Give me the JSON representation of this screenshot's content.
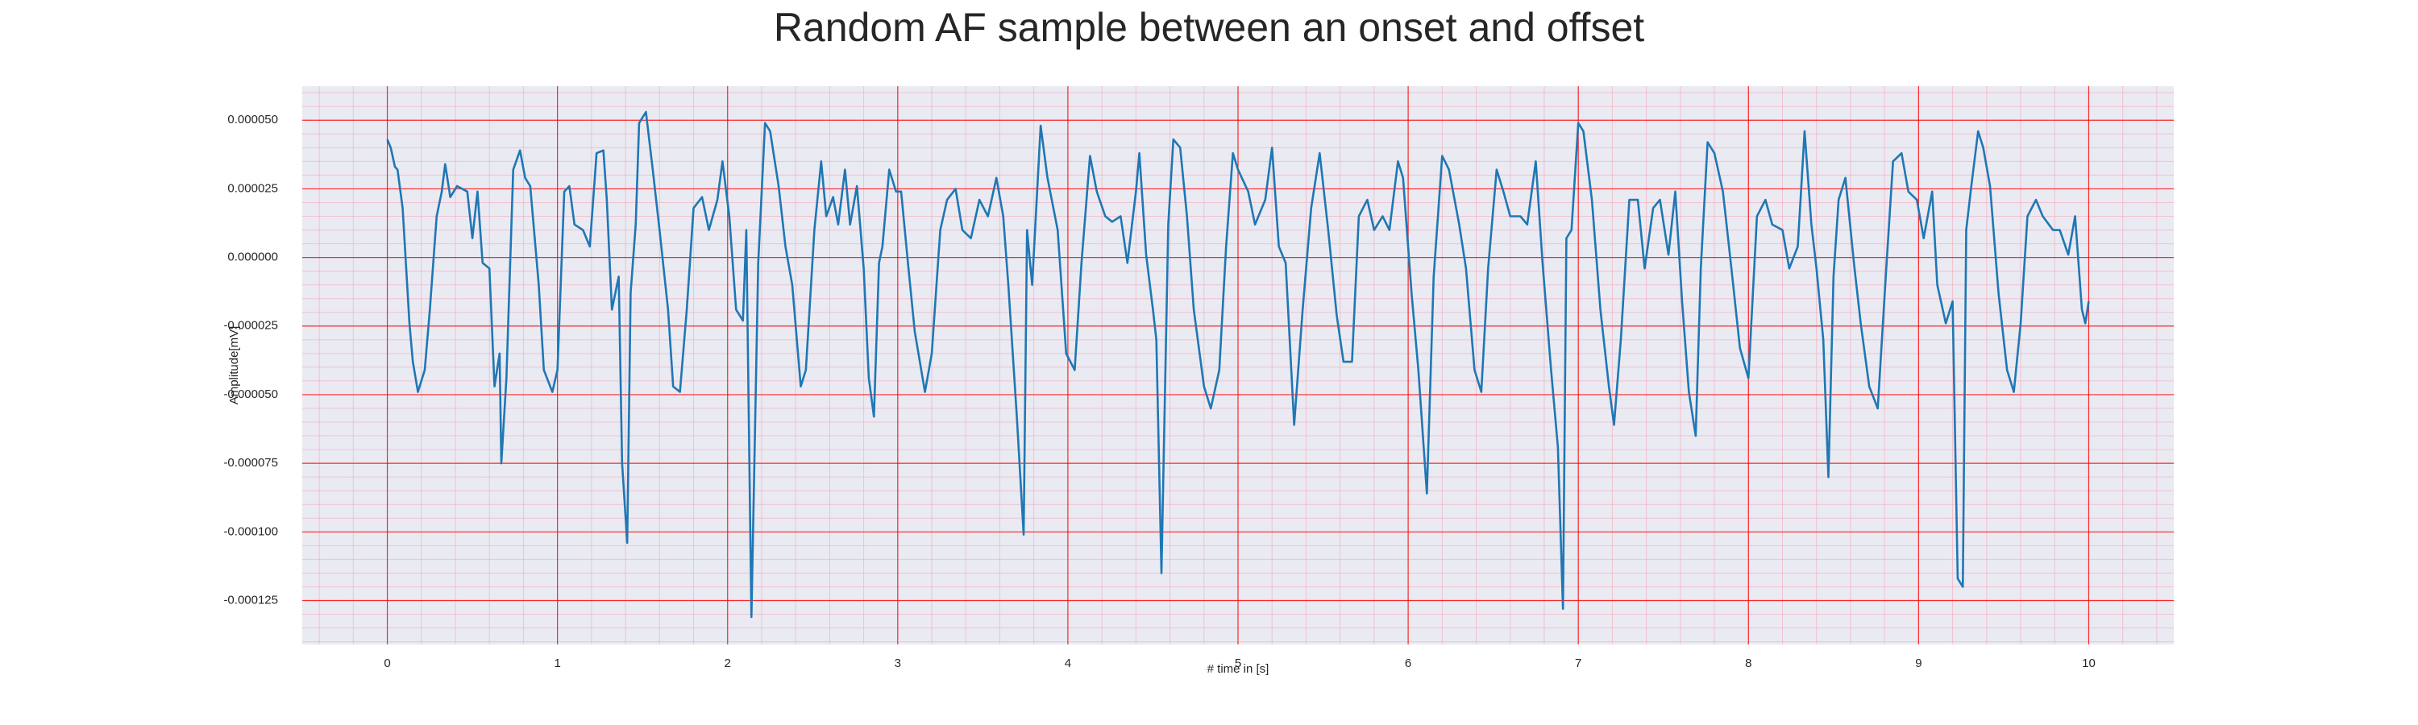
{
  "chart_data": {
    "type": "line",
    "title": "Random AF sample between an onset and offset",
    "xlabel": "# time in [s]",
    "ylabel": "Amplitude[mV]",
    "color": "#1f77b4",
    "grid": true,
    "grid_color": "#ff0000",
    "minor_grid": {
      "x": 0.2,
      "y": 5e-06,
      "color": "#f4a6b8"
    },
    "background": "#eaeaf2",
    "xlim": [
      -0.5,
      10.5
    ],
    "xticks": [
      0,
      1,
      2,
      3,
      4,
      5,
      6,
      7,
      8,
      9,
      10
    ],
    "ylim": [
      -0.000141,
      6.24e-05
    ],
    "yticks": [
      {
        "value": -0.000125,
        "label": "-0.000125"
      },
      {
        "value": -0.0001,
        "label": "-0.000100"
      },
      {
        "value": -7.5e-05,
        "label": "-0.000075"
      },
      {
        "value": -5e-05,
        "label": "-0.000050"
      },
      {
        "value": -2.5e-05,
        "label": "-0.000025"
      },
      {
        "value": 0,
        "label": "0.000000"
      },
      {
        "value": 2.5e-05,
        "label": "0.000025"
      },
      {
        "value": 5e-05,
        "label": "0.000050"
      }
    ],
    "x": [
      0,
      0.02,
      0.045,
      0.06,
      0.09,
      0.13,
      0.15,
      0.18,
      0.22,
      0.25,
      0.29,
      0.32,
      0.34,
      0.37,
      0.41,
      0.44,
      0.47,
      0.5,
      0.53,
      0.56,
      0.6,
      0.63,
      0.66,
      0.67,
      0.7,
      0.74,
      0.78,
      0.81,
      0.84,
      0.89,
      0.92,
      0.97,
      1.0,
      1.04,
      1.07,
      1.1,
      1.15,
      1.19,
      1.23,
      1.27,
      1.29,
      1.32,
      1.36,
      1.38,
      1.41,
      1.43,
      1.46,
      1.48,
      1.52,
      1.56,
      1.6,
      1.65,
      1.68,
      1.72,
      1.76,
      1.8,
      1.85,
      1.89,
      1.94,
      1.97,
      2.01,
      2.05,
      2.09,
      2.11,
      2.14,
      2.18,
      2.22,
      2.25,
      2.3,
      2.34,
      2.38,
      2.43,
      2.46,
      2.51,
      2.55,
      2.58,
      2.62,
      2.65,
      2.69,
      2.72,
      2.76,
      2.8,
      2.83,
      2.86,
      2.89,
      2.91,
      2.95,
      2.99,
      3.02,
      3.06,
      3.1,
      3.16,
      3.2,
      3.25,
      3.29,
      3.34,
      3.38,
      3.43,
      3.48,
      3.53,
      3.58,
      3.62,
      3.65,
      3.7,
      3.74,
      3.76,
      3.79,
      3.84,
      3.88,
      3.94,
      3.99,
      4.04,
      4.08,
      4.13,
      4.17,
      4.22,
      4.26,
      4.31,
      4.35,
      4.4,
      4.42,
      4.46,
      4.5,
      4.52,
      4.55,
      4.59,
      4.62,
      4.66,
      4.7,
      4.74,
      4.8,
      4.84,
      4.89,
      4.93,
      4.97,
      5.0,
      5.06,
      5.1,
      5.16,
      5.2,
      5.24,
      5.28,
      5.33,
      5.38,
      5.43,
      5.48,
      5.53,
      5.58,
      5.62,
      5.67,
      5.71,
      5.76,
      5.8,
      5.85,
      5.89,
      5.94,
      5.97,
      6.02,
      6.06,
      6.11,
      6.15,
      6.2,
      6.24,
      6.3,
      6.34,
      6.39,
      6.43,
      6.47,
      6.52,
      6.56,
      6.6,
      6.66,
      6.7,
      6.75,
      6.79,
      6.84,
      6.88,
      6.91,
      6.93,
      6.96,
      7.0,
      7.03,
      7.08,
      7.13,
      7.18,
      7.21,
      7.25,
      7.3,
      7.35,
      7.39,
      7.44,
      7.48,
      7.53,
      7.57,
      7.61,
      7.65,
      7.69,
      7.72,
      7.76,
      7.8,
      7.85,
      7.9,
      7.95,
      8.0,
      8.05,
      8.1,
      8.14,
      8.2,
      8.24,
      8.29,
      8.33,
      8.37,
      8.4,
      8.44,
      8.47,
      8.5,
      8.53,
      8.57,
      8.62,
      8.66,
      8.71,
      8.76,
      8.81,
      8.85,
      8.9,
      8.94,
      8.99,
      9.03,
      9.08,
      9.11,
      9.16,
      9.2,
      9.23,
      9.26,
      9.28,
      9.31,
      9.35,
      9.38,
      9.42,
      9.47,
      9.52,
      9.56,
      9.6,
      9.64,
      9.69,
      9.73,
      9.79,
      9.83,
      9.88,
      9.92,
      9.96,
      9.98,
      10.0
    ],
    "values": [
      4.3e-05,
      4e-05,
      3.3e-05,
      3.2e-05,
      1.8e-05,
      -2.4e-05,
      -3.8e-05,
      -4.9e-05,
      -4.1e-05,
      -1.9e-05,
      1.5e-05,
      2.4e-05,
      3.4e-05,
      2.2e-05,
      2.6e-05,
      2.5e-05,
      2.4e-05,
      7e-06,
      2.4e-05,
      -2e-06,
      -4e-06,
      -4.7e-05,
      -3.5e-05,
      -7.5e-05,
      -4.4e-05,
      3.2e-05,
      3.9e-05,
      2.9e-05,
      2.6e-05,
      -1e-05,
      -4.1e-05,
      -4.9e-05,
      -4.1e-05,
      2.4e-05,
      2.6e-05,
      1.2e-05,
      1e-05,
      4e-06,
      3.8e-05,
      3.9e-05,
      2.1e-05,
      -1.9e-05,
      -7e-06,
      -7.5e-05,
      -0.000104,
      -1.3e-05,
      1.2e-05,
      4.9e-05,
      5.3e-05,
      3.2e-05,
      1e-05,
      -1.9e-05,
      -4.7e-05,
      -4.9e-05,
      -1.9e-05,
      1.8e-05,
      2.2e-05,
      1e-05,
      2.1e-05,
      3.5e-05,
      1.5e-05,
      -1.9e-05,
      -2.3e-05,
      1e-05,
      -0.000131,
      -2e-06,
      4.9e-05,
      4.6e-05,
      2.6e-05,
      4e-06,
      -1e-05,
      -4.7e-05,
      -4.1e-05,
      1e-05,
      3.5e-05,
      1.5e-05,
      2.2e-05,
      1.2e-05,
      3.2e-05,
      1.2e-05,
      2.6e-05,
      -4e-06,
      -4.4e-05,
      -5.8e-05,
      -2e-06,
      4e-06,
      3.2e-05,
      2.4e-05,
      2.4e-05,
      -2e-06,
      -2.7e-05,
      -4.9e-05,
      -3.5e-05,
      1e-05,
      2.1e-05,
      2.5e-05,
      1e-05,
      7e-06,
      2.1e-05,
      1.5e-05,
      2.9e-05,
      1.5e-05,
      -1e-05,
      -5.8e-05,
      -0.000101,
      1e-05,
      -1e-05,
      4.8e-05,
      2.9e-05,
      1e-05,
      -3.5e-05,
      -4.1e-05,
      -2e-06,
      3.7e-05,
      2.4e-05,
      1.5e-05,
      1.3e-05,
      1.5e-05,
      -2e-06,
      2.4e-05,
      3.8e-05,
      1e-06,
      -1.9e-05,
      -3e-05,
      -0.000115,
      1.2e-05,
      4.3e-05,
      4e-05,
      1.5e-05,
      -1.9e-05,
      -4.7e-05,
      -5.5e-05,
      -4.1e-05,
      4e-06,
      3.8e-05,
      3.2e-05,
      2.4e-05,
      1.2e-05,
      2.1e-05,
      4e-05,
      4e-06,
      -2e-06,
      -6.1e-05,
      -1.9e-05,
      1.8e-05,
      3.8e-05,
      1e-05,
      -2.1e-05,
      -3.8e-05,
      -3.8e-05,
      1.5e-05,
      2.1e-05,
      1e-05,
      1.5e-05,
      1e-05,
      3.5e-05,
      2.9e-05,
      -1.3e-05,
      -4.1e-05,
      -8.6e-05,
      -7e-06,
      3.7e-05,
      3.2e-05,
      1.2e-05,
      -4e-06,
      -4.1e-05,
      -4.9e-05,
      -4e-06,
      3.2e-05,
      2.4e-05,
      1.5e-05,
      1.5e-05,
      1.2e-05,
      3.5e-05,
      -2e-06,
      -4.1e-05,
      -6.9e-05,
      -0.000128,
      7e-06,
      1e-05,
      4.9e-05,
      4.6e-05,
      2.1e-05,
      -1.9e-05,
      -4.7e-05,
      -6.1e-05,
      -3e-05,
      2.1e-05,
      2.1e-05,
      -4e-06,
      1.8e-05,
      2.1e-05,
      1e-06,
      2.4e-05,
      -1.6e-05,
      -4.9e-05,
      -6.5e-05,
      -4e-06,
      4.2e-05,
      3.8e-05,
      2.4e-05,
      -4e-06,
      -3.3e-05,
      -4.4e-05,
      1.5e-05,
      2.1e-05,
      1.2e-05,
      1e-05,
      -4e-06,
      4e-06,
      4.6e-05,
      1.2e-05,
      -4e-06,
      -3e-05,
      -8e-05,
      -7e-06,
      2.1e-05,
      2.9e-05,
      -2e-06,
      -2.4e-05,
      -4.7e-05,
      -5.5e-05,
      -4e-06,
      3.5e-05,
      3.8e-05,
      2.4e-05,
      2.1e-05,
      7e-06,
      2.4e-05,
      -1e-05,
      -2.4e-05,
      -1.6e-05,
      -0.000117,
      -0.00012,
      1e-05,
      2.6e-05,
      4.6e-05,
      4e-05,
      2.6e-05,
      -1.3e-05,
      -4.1e-05,
      -4.9e-05,
      -2.4e-05,
      1.5e-05,
      2.1e-05,
      1.5e-05,
      1e-05,
      1e-05,
      1e-06,
      1.5e-05,
      -1.9e-05,
      -2.4e-05,
      -1.6e-05
    ]
  }
}
